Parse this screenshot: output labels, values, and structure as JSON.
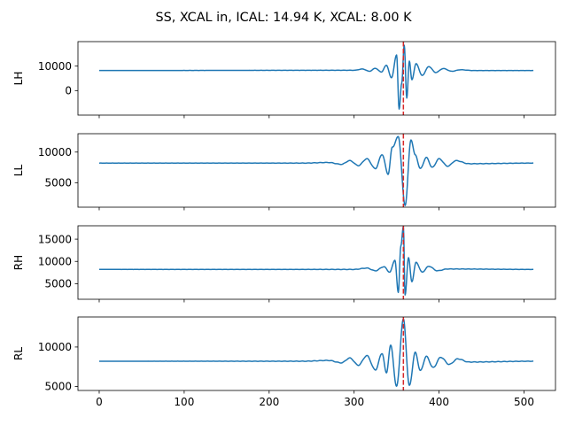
{
  "figure": {
    "title": "SS, XCAL in, ICAL: 14.94 K, XCAL: 8.00 K"
  },
  "chart_data": [
    {
      "type": "line",
      "ylabel": "LH",
      "xlim": [
        -25,
        537
      ],
      "ylim": [
        -10000,
        20000
      ],
      "yticks": [
        0,
        10000
      ],
      "xticks": [
        0,
        100,
        200,
        300,
        400,
        500
      ],
      "show_xticklabels": false,
      "vline_x": 358,
      "series_color": "#1f77b4",
      "vline_color": "#d62728",
      "signal": {
        "baseline": 8200,
        "center": 356,
        "keypoints": [
          {
            "x": 0,
            "y": 8200
          },
          {
            "x": 300,
            "y": 8300
          },
          {
            "x": 310,
            "y": 8800
          },
          {
            "x": 318,
            "y": 7900
          },
          {
            "x": 325,
            "y": 9100
          },
          {
            "x": 332,
            "y": 7600
          },
          {
            "x": 338,
            "y": 10300
          },
          {
            "x": 344,
            "y": 5200
          },
          {
            "x": 350,
            "y": 14500
          },
          {
            "x": 353,
            "y": -7500
          },
          {
            "x": 356,
            "y": 3000
          },
          {
            "x": 359,
            "y": 18500
          },
          {
            "x": 362,
            "y": -3000
          },
          {
            "x": 365,
            "y": 12000
          },
          {
            "x": 368,
            "y": 4500
          },
          {
            "x": 373,
            "y": 11000
          },
          {
            "x": 380,
            "y": 6200
          },
          {
            "x": 388,
            "y": 9800
          },
          {
            "x": 396,
            "y": 7400
          },
          {
            "x": 405,
            "y": 9000
          },
          {
            "x": 415,
            "y": 7900
          },
          {
            "x": 425,
            "y": 8500
          },
          {
            "x": 440,
            "y": 8200
          },
          {
            "x": 511,
            "y": 8200
          }
        ]
      }
    },
    {
      "type": "line",
      "ylabel": "LL",
      "xlim": [
        -25,
        537
      ],
      "ylim": [
        1000,
        13000
      ],
      "yticks": [
        5000,
        10000
      ],
      "xticks": [
        0,
        100,
        200,
        300,
        400,
        500
      ],
      "show_xticklabels": false,
      "vline_x": 358,
      "series_color": "#1f77b4",
      "vline_color": "#d62728",
      "signal": {
        "baseline": 8200,
        "center": 357,
        "keypoints": [
          {
            "x": 0,
            "y": 8200
          },
          {
            "x": 240,
            "y": 8200
          },
          {
            "x": 270,
            "y": 8300
          },
          {
            "x": 285,
            "y": 8000
          },
          {
            "x": 295,
            "y": 8600
          },
          {
            "x": 305,
            "y": 7800
          },
          {
            "x": 315,
            "y": 8900
          },
          {
            "x": 325,
            "y": 7300
          },
          {
            "x": 333,
            "y": 9600
          },
          {
            "x": 340,
            "y": 6400
          },
          {
            "x": 345,
            "y": 10800
          },
          {
            "x": 352,
            "y": 12500
          },
          {
            "x": 360,
            "y": 1300
          },
          {
            "x": 367,
            "y": 12000
          },
          {
            "x": 372,
            "y": 9500
          },
          {
            "x": 378,
            "y": 7300
          },
          {
            "x": 385,
            "y": 9100
          },
          {
            "x": 392,
            "y": 7500
          },
          {
            "x": 400,
            "y": 8900
          },
          {
            "x": 410,
            "y": 7700
          },
          {
            "x": 420,
            "y": 8600
          },
          {
            "x": 435,
            "y": 8100
          },
          {
            "x": 511,
            "y": 8200
          }
        ]
      }
    },
    {
      "type": "line",
      "ylabel": "RH",
      "xlim": [
        -25,
        537
      ],
      "ylim": [
        1500,
        18000
      ],
      "yticks": [
        5000,
        10000,
        15000
      ],
      "xticks": [
        0,
        100,
        200,
        300,
        400,
        500
      ],
      "show_xticklabels": false,
      "vline_x": 358,
      "series_color": "#1f77b4",
      "vline_color": "#d62728",
      "signal": {
        "baseline": 8200,
        "center": 357,
        "keypoints": [
          {
            "x": 0,
            "y": 8200
          },
          {
            "x": 300,
            "y": 8200
          },
          {
            "x": 315,
            "y": 8500
          },
          {
            "x": 325,
            "y": 7900
          },
          {
            "x": 335,
            "y": 8800
          },
          {
            "x": 342,
            "y": 7600
          },
          {
            "x": 348,
            "y": 10300
          },
          {
            "x": 352,
            "y": 3000
          },
          {
            "x": 355,
            "y": 13500
          },
          {
            "x": 358,
            "y": 17800
          },
          {
            "x": 360,
            "y": 2500
          },
          {
            "x": 364,
            "y": 10800
          },
          {
            "x": 368,
            "y": 5500
          },
          {
            "x": 373,
            "y": 9800
          },
          {
            "x": 380,
            "y": 7600
          },
          {
            "x": 388,
            "y": 8900
          },
          {
            "x": 398,
            "y": 7900
          },
          {
            "x": 410,
            "y": 8300
          },
          {
            "x": 511,
            "y": 8200
          }
        ]
      }
    },
    {
      "type": "line",
      "ylabel": "RL",
      "xlim": [
        -25,
        537
      ],
      "ylim": [
        4500,
        13800
      ],
      "yticks": [
        5000,
        10000
      ],
      "xticks": [
        0,
        100,
        200,
        300,
        400,
        500
      ],
      "show_xticklabels": true,
      "vline_x": 358,
      "series_color": "#1f77b4",
      "vline_color": "#d62728",
      "signal": {
        "baseline": 8200,
        "center": 357,
        "keypoints": [
          {
            "x": 0,
            "y": 8200
          },
          {
            "x": 240,
            "y": 8200
          },
          {
            "x": 270,
            "y": 8300
          },
          {
            "x": 285,
            "y": 8000
          },
          {
            "x": 295,
            "y": 8600
          },
          {
            "x": 305,
            "y": 7700
          },
          {
            "x": 315,
            "y": 8900
          },
          {
            "x": 325,
            "y": 7100
          },
          {
            "x": 333,
            "y": 9200
          },
          {
            "x": 338,
            "y": 6700
          },
          {
            "x": 343,
            "y": 10200
          },
          {
            "x": 350,
            "y": 5000
          },
          {
            "x": 358,
            "y": 13500
          },
          {
            "x": 365,
            "y": 5100
          },
          {
            "x": 372,
            "y": 9300
          },
          {
            "x": 378,
            "y": 7000
          },
          {
            "x": 385,
            "y": 8800
          },
          {
            "x": 393,
            "y": 7400
          },
          {
            "x": 402,
            "y": 8700
          },
          {
            "x": 412,
            "y": 7800
          },
          {
            "x": 422,
            "y": 8500
          },
          {
            "x": 435,
            "y": 8100
          },
          {
            "x": 511,
            "y": 8200
          }
        ]
      }
    }
  ]
}
